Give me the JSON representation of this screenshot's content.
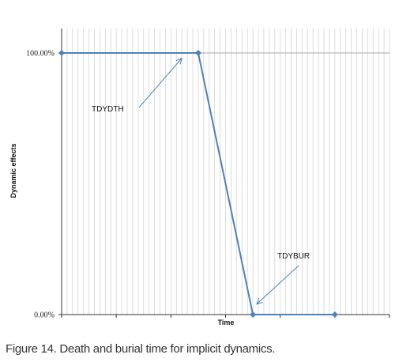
{
  "chart_data": {
    "type": "line",
    "xlabel": "Time",
    "ylabel": "Dynamic effects",
    "ylim": [
      0,
      1
    ],
    "yticks": [
      {
        "value": 0,
        "label": "0.00%"
      },
      {
        "value": 1,
        "label": "100.00%"
      }
    ],
    "xlim": [
      0,
      60
    ],
    "series": [
      {
        "x": [
          0,
          25,
          35,
          50
        ],
        "values": [
          1,
          1,
          0,
          0
        ],
        "color": "#4f81bd"
      }
    ],
    "annotations": [
      {
        "text": "TDYDTH",
        "points_to": {
          "x": 22,
          "y": 0.98
        }
      },
      {
        "text": "TDYBUR",
        "points_to": {
          "x": 35.7,
          "y": 0.04
        }
      }
    ],
    "grid": {
      "vertical": true,
      "horizontal": false
    },
    "caption": "Figure 14. Death and burial time for implicit dynamics."
  }
}
